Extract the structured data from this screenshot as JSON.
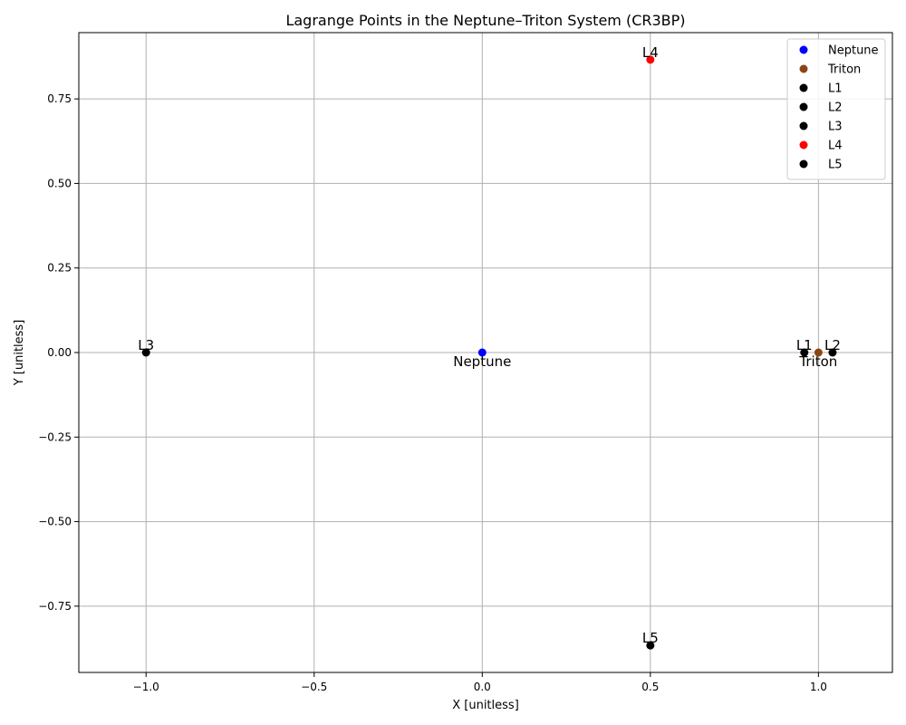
{
  "chart_data": {
    "type": "scatter",
    "title": "Lagrange Points in the Neptune–Triton System (CR3BP)",
    "xlabel": "X [unitless]",
    "ylabel": "Y [unitless]",
    "xlim": [
      -1.2,
      1.22
    ],
    "ylim": [
      -0.946,
      0.946
    ],
    "xticks": [
      -1.0,
      -0.5,
      0.0,
      0.5,
      1.0
    ],
    "xtick_labels": [
      "−1.0",
      "−0.5",
      "0.0",
      "0.5",
      "1.0"
    ],
    "yticks": [
      -0.75,
      -0.5,
      -0.25,
      0.0,
      0.25,
      0.5,
      0.75
    ],
    "ytick_labels": [
      "−0.75",
      "−0.50",
      "−0.25",
      "0.00",
      "0.25",
      "0.50",
      "0.75"
    ],
    "grid": true,
    "legend_position": "top-right",
    "series": [
      {
        "name": "Neptune",
        "x": 0.0,
        "y": 0.0,
        "color": "#0000ff",
        "annotation": "Neptune",
        "annotation_placement": "below"
      },
      {
        "name": "Triton",
        "x": 1.0,
        "y": 0.0,
        "color": "#8b4513",
        "annotation": "Triton",
        "annotation_placement": "below"
      },
      {
        "name": "L1",
        "x": 0.958,
        "y": 0.0,
        "color": "#000000",
        "annotation": "L1",
        "annotation_placement": "above"
      },
      {
        "name": "L2",
        "x": 1.042,
        "y": 0.0,
        "color": "#000000",
        "annotation": "L2",
        "annotation_placement": "above"
      },
      {
        "name": "L3",
        "x": -1.0,
        "y": 0.0,
        "color": "#000000",
        "annotation": "L3",
        "annotation_placement": "above"
      },
      {
        "name": "L4",
        "x": 0.5,
        "y": 0.866,
        "color": "#ff0000",
        "annotation": "L4",
        "annotation_placement": "above"
      },
      {
        "name": "L5",
        "x": 0.5,
        "y": -0.866,
        "color": "#000000",
        "annotation": "L5",
        "annotation_placement": "above"
      }
    ]
  }
}
